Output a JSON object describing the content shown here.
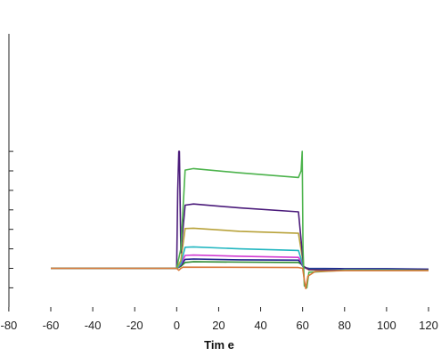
{
  "chart_data": {
    "type": "line",
    "title": "",
    "xlabel": "Tim e",
    "ylabel": "",
    "xlim": [
      -80,
      125
    ],
    "ylim": [
      -0.55,
      3.0
    ],
    "x_ticks": [
      -80,
      -60,
      -40,
      -20,
      0,
      20,
      40,
      60,
      80,
      100,
      120
    ],
    "x_tick_labels": [
      "-80",
      "-60",
      "-40",
      "-20",
      "0",
      "20",
      "40",
      "60",
      "80",
      "100",
      "120"
    ],
    "y_ticks": [
      -0.5,
      0,
      0.5,
      1,
      1.5,
      2,
      2.5,
      3
    ],
    "y_tick_labels": [],
    "grid": false,
    "legend": "none",
    "series": [
      {
        "color": "#2e8b2e",
        "points": [
          [
            -60,
            0
          ],
          [
            -30,
            0
          ],
          [
            0,
            0
          ],
          [
            2,
            0.05
          ],
          [
            4,
            0.15
          ],
          [
            8,
            0.17
          ],
          [
            30,
            0.16
          ],
          [
            58,
            0.15
          ],
          [
            59.5,
            0.1
          ],
          [
            60.5,
            0.02
          ],
          [
            63,
            -0.02
          ],
          [
            80,
            -0.03
          ],
          [
            100,
            -0.04
          ],
          [
            120,
            -0.04
          ]
        ]
      },
      {
        "color": "#1c1c8c",
        "points": [
          [
            -60,
            0
          ],
          [
            -30,
            0
          ],
          [
            0,
            0
          ],
          [
            2,
            0.08
          ],
          [
            4,
            0.23
          ],
          [
            8,
            0.24
          ],
          [
            30,
            0.22
          ],
          [
            58,
            0.21
          ],
          [
            59.5,
            0.12
          ],
          [
            60.5,
            0.02
          ],
          [
            63,
            0.0
          ],
          [
            80,
            -0.01
          ],
          [
            100,
            -0.01
          ],
          [
            120,
            -0.02
          ]
        ]
      },
      {
        "color": "#d23ad2",
        "points": [
          [
            -60,
            0
          ],
          [
            -30,
            0
          ],
          [
            0,
            0
          ],
          [
            2,
            0.1
          ],
          [
            4,
            0.33
          ],
          [
            8,
            0.34
          ],
          [
            30,
            0.31
          ],
          [
            58,
            0.28
          ],
          [
            59.5,
            0.15
          ],
          [
            60.5,
            0.02
          ],
          [
            63,
            -0.03
          ],
          [
            80,
            -0.04
          ],
          [
            100,
            -0.04
          ],
          [
            120,
            -0.05
          ]
        ]
      },
      {
        "color": "#21b6c0",
        "points": [
          [
            -60,
            0
          ],
          [
            -30,
            0
          ],
          [
            0,
            0
          ],
          [
            2,
            0.12
          ],
          [
            4,
            0.54
          ],
          [
            8,
            0.55
          ],
          [
            30,
            0.5
          ],
          [
            58,
            0.46
          ],
          [
            59.5,
            0.2
          ],
          [
            60.5,
            0.03
          ],
          [
            63,
            -0.02
          ],
          [
            80,
            -0.03
          ],
          [
            100,
            -0.03
          ],
          [
            120,
            -0.04
          ]
        ]
      },
      {
        "color": "#b8a23a",
        "points": [
          [
            -60,
            0
          ],
          [
            -30,
            0
          ],
          [
            0,
            0
          ],
          [
            2,
            0.2
          ],
          [
            4,
            1.02
          ],
          [
            8,
            1.03
          ],
          [
            30,
            0.95
          ],
          [
            58,
            0.9
          ],
          [
            59.5,
            0.4
          ],
          [
            60.5,
            0.05
          ],
          [
            63,
            -0.04
          ],
          [
            80,
            -0.05
          ],
          [
            100,
            -0.05
          ],
          [
            120,
            -0.05
          ]
        ]
      },
      {
        "color": "#4a1a7a",
        "points": [
          [
            -60,
            0
          ],
          [
            -30,
            0
          ],
          [
            0,
            0
          ],
          [
            0.5,
            2.0
          ],
          [
            1,
            3.0
          ],
          [
            1.3,
            3.0
          ],
          [
            2,
            0.4
          ],
          [
            4,
            1.62
          ],
          [
            8,
            1.65
          ],
          [
            30,
            1.55
          ],
          [
            58,
            1.45
          ],
          [
            59.5,
            0.6
          ],
          [
            60.5,
            0.05
          ],
          [
            63,
            -0.03
          ],
          [
            80,
            -0.04
          ],
          [
            100,
            -0.04
          ],
          [
            120,
            -0.04
          ]
        ]
      },
      {
        "color": "#4cb34c",
        "points": [
          [
            -60,
            0
          ],
          [
            -30,
            0
          ],
          [
            0,
            0
          ],
          [
            2,
            0.5
          ],
          [
            4,
            2.52
          ],
          [
            8,
            2.56
          ],
          [
            30,
            2.45
          ],
          [
            58,
            2.33
          ],
          [
            59.3,
            2.5
          ],
          [
            59.8,
            3.0
          ],
          [
            60.2,
            0.5
          ],
          [
            60.8,
            -0.45
          ],
          [
            62,
            -0.5
          ],
          [
            63,
            -0.1
          ],
          [
            80,
            -0.05
          ],
          [
            100,
            -0.05
          ],
          [
            120,
            -0.05
          ]
        ]
      },
      {
        "color": "#d9793a",
        "points": [
          [
            -60,
            0
          ],
          [
            -30,
            0
          ],
          [
            0,
            0
          ],
          [
            1,
            -0.05
          ],
          [
            2,
            0.0
          ],
          [
            3,
            0.03
          ],
          [
            58,
            0.02
          ],
          [
            60,
            0.0
          ],
          [
            60.8,
            -0.3
          ],
          [
            61.5,
            -0.52
          ],
          [
            62.5,
            -0.2
          ],
          [
            66,
            -0.08
          ],
          [
            80,
            -0.06
          ],
          [
            100,
            -0.06
          ],
          [
            120,
            -0.06
          ]
        ]
      }
    ]
  }
}
